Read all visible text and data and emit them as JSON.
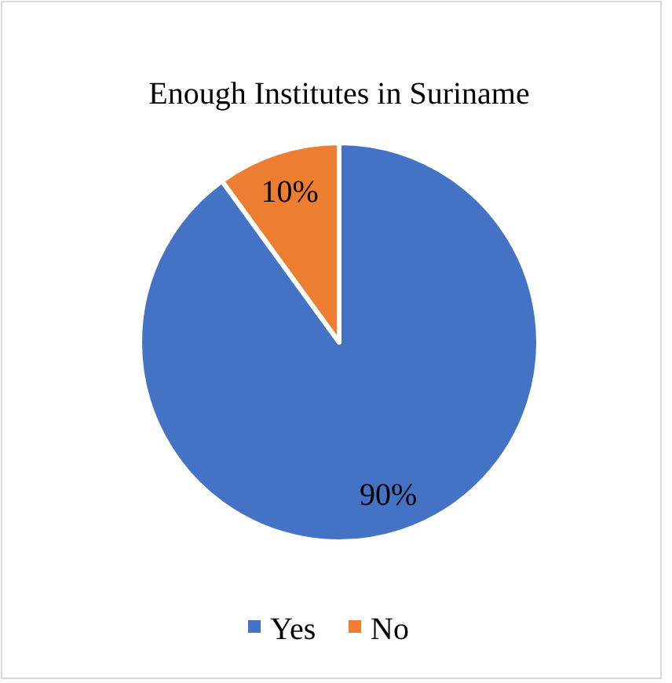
{
  "chart_data": {
    "type": "pie",
    "title": "Enough Institutes in Suriname",
    "categories": [
      "Yes",
      "No"
    ],
    "values": [
      90,
      10
    ],
    "colors": [
      "#4472c4",
      "#ed7d31"
    ],
    "value_labels": [
      "90%",
      "10%"
    ],
    "legend": "bottom"
  }
}
